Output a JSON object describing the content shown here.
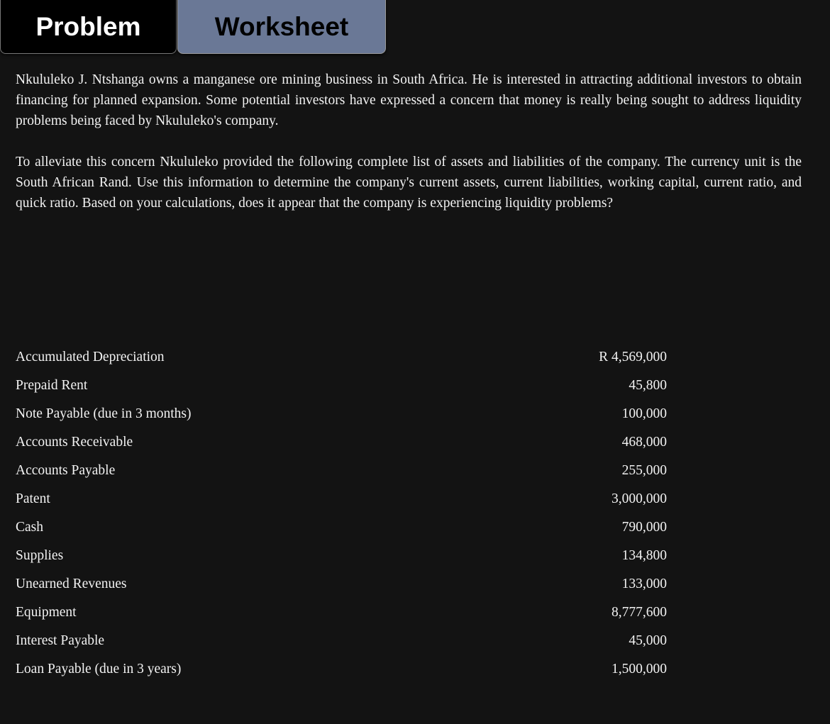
{
  "tabs": [
    {
      "label": "Problem",
      "active": true
    },
    {
      "label": "Worksheet",
      "active": false
    }
  ],
  "problem": {
    "paragraphs": [
      "Nkululeko J. Ntshanga owns a manganese ore mining business in South Africa.  He is interested in attracting additional investors to obtain financing for planned expansion.  Some potential investors have expressed a concern that money is really being sought to address liquidity problems being faced by Nkululeko's company.",
      "To alleviate this concern Nkululeko provided the following complete list of assets and liabilities of the company.  The currency unit is the South African Rand.  Use this information to determine the company's current assets, current liabilities, working capital, current ratio, and quick ratio.  Based on your calculations, does it appear that the company is experiencing liquidity problems?"
    ],
    "items": [
      {
        "label": "Accumulated Depreciation",
        "value": "R 4,569,000"
      },
      {
        "label": "Prepaid Rent",
        "value": "45,800"
      },
      {
        "label": "Note Payable (due in 3 months)",
        "value": "100,000"
      },
      {
        "label": "Accounts Receivable",
        "value": "468,000"
      },
      {
        "label": "Accounts Payable",
        "value": "255,000"
      },
      {
        "label": "Patent",
        "value": "3,000,000"
      },
      {
        "label": "Cash",
        "value": "790,000"
      },
      {
        "label": "Supplies",
        "value": "134,800"
      },
      {
        "label": "Unearned Revenues",
        "value": "133,000"
      },
      {
        "label": "Equipment",
        "value": "8,777,600"
      },
      {
        "label": "Interest Payable",
        "value": "45,000"
      },
      {
        "label": "Loan Payable (due in 3 years)",
        "value": "1,500,000"
      }
    ]
  }
}
